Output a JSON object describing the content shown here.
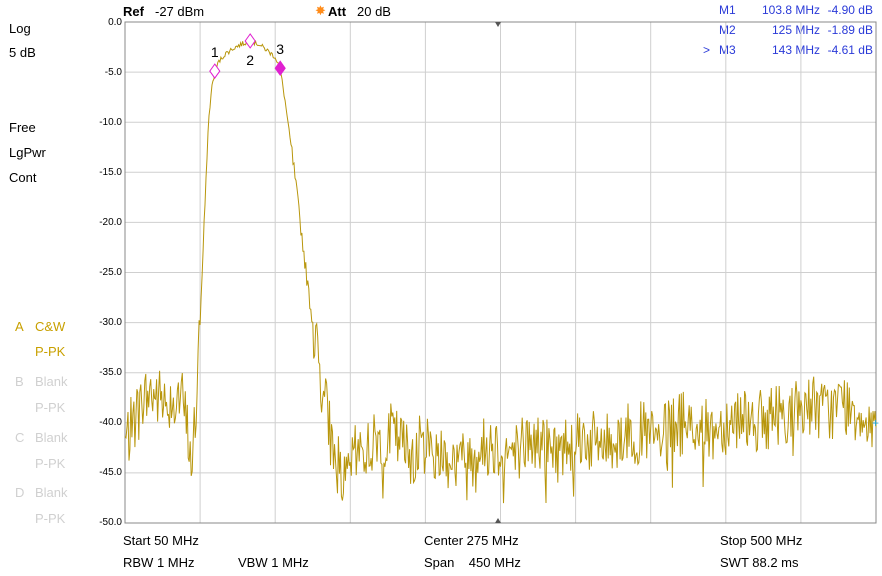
{
  "header": {
    "ref_label": "Ref",
    "ref_value": "-27 dBm",
    "att_label": "Att",
    "att_value": "20 dB"
  },
  "left_panel": {
    "scale_type": "Log",
    "scale_div": "5 dB",
    "trigger": "Free",
    "detector_mode": "LgPwr",
    "sweep_mode": "Cont"
  },
  "traces": [
    {
      "letter": "A",
      "mode": "C&W",
      "detector": "P-PK",
      "active": true
    },
    {
      "letter": "B",
      "mode": "Blank",
      "detector": "P-PK",
      "active": false
    },
    {
      "letter": "C",
      "mode": "Blank",
      "detector": "P-PK",
      "active": false
    },
    {
      "letter": "D",
      "mode": "Blank",
      "detector": "P-PK",
      "active": false
    }
  ],
  "markers": [
    {
      "name": "M1",
      "prefix": "",
      "freq": "103.8 MHz",
      "level": "-4.90 dB",
      "label": "1",
      "x_mhz": 103.8,
      "y_db": -4.9,
      "active": false
    },
    {
      "name": "M2",
      "prefix": "",
      "freq": "125 MHz",
      "level": "-1.89 dB",
      "label": "2",
      "x_mhz": 125,
      "y_db": -1.89,
      "active": false
    },
    {
      "name": "M3",
      "prefix": ">",
      "freq": "143 MHz",
      "level": "-4.61 dB",
      "label": "3",
      "x_mhz": 143,
      "y_db": -4.61,
      "active": true
    }
  ],
  "footer": {
    "start": "Start  50 MHz",
    "rbw": "RBW  1 MHz",
    "vbw": "VBW  1 MHz",
    "center": "Center  275 MHz",
    "span": "Span    450 MHz",
    "stop": "Stop  500 MHz",
    "swt": "SWT  88.2 ms"
  },
  "colors": {
    "trace": "#b8960c",
    "trace_label_active": "#c8a000",
    "trace_label_inactive": "#d0d0d0",
    "marker": "#e020d0",
    "marker_text": "#2a3ad8",
    "grid": "#cfcfcf",
    "att_icon": "#ff8c1a"
  },
  "chart_data": {
    "type": "line",
    "xlabel": "",
    "ylabel": "",
    "xlim": [
      50,
      500
    ],
    "ylim": [
      -50,
      0
    ],
    "y_ticks": [
      "0.0",
      "-5.0",
      "-10.0",
      "-15.0",
      "-20.0",
      "-25.0",
      "-30.0",
      "-35.0",
      "-40.0",
      "-45.0",
      "-50.0"
    ],
    "grid": true,
    "series": [
      {
        "x": [
          50,
          55,
          60,
          65,
          70,
          75,
          80,
          85,
          90,
          92,
          95,
          98,
          100,
          102,
          104,
          106,
          110,
          115,
          120,
          125,
          130,
          135,
          140,
          143,
          146,
          150,
          155,
          160,
          165,
          170,
          175,
          180,
          182,
          185,
          190,
          200,
          210,
          220,
          230,
          240,
          250,
          260,
          270,
          280,
          290,
          300,
          310,
          320,
          330,
          340,
          350,
          360,
          370,
          380,
          390,
          400,
          410,
          420,
          430,
          440,
          450,
          460,
          470,
          480,
          490,
          500
        ],
        "y": [
          -42,
          -40,
          -38,
          -37,
          -37.5,
          -38,
          -37,
          -38,
          -44,
          -40,
          -30,
          -18,
          -10,
          -6.5,
          -4.9,
          -4,
          -3.2,
          -2.6,
          -2.2,
          -1.9,
          -2.2,
          -2.8,
          -3.5,
          -4.6,
          -8,
          -13,
          -20,
          -27,
          -33,
          -38,
          -43,
          -45,
          -47,
          -44,
          -43,
          -42,
          -41,
          -43,
          -42,
          -43,
          -44,
          -43,
          -42,
          -43,
          -42,
          -42,
          -43,
          -41,
          -42,
          -42,
          -41,
          -41,
          -42,
          -40,
          -40,
          -41,
          -40,
          -39,
          -40,
          -39,
          -39,
          -38,
          -39,
          -38,
          -39,
          -40
        ]
      }
    ]
  }
}
